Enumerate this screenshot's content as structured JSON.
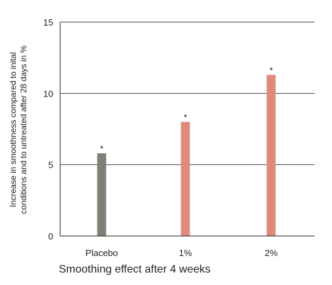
{
  "chart_data": {
    "type": "bar",
    "categories": [
      "Placebo",
      "1%",
      "2%"
    ],
    "values": [
      5.8,
      8.0,
      11.3
    ],
    "annotations": [
      "*",
      "*",
      "*"
    ],
    "colors": [
      "#808078",
      "#e08a7c",
      "#e08a7c"
    ],
    "ylim": [
      0,
      15
    ],
    "yticks": [
      "0",
      "5",
      "10",
      "15"
    ],
    "ylabel_lines": [
      "Increase in smoothness compared to inital",
      "conditions and to untreated after 28 days in %"
    ],
    "xlabel": "Smoothing effect after 4 weeks",
    "grid": "horizontal",
    "legend": "none"
  }
}
